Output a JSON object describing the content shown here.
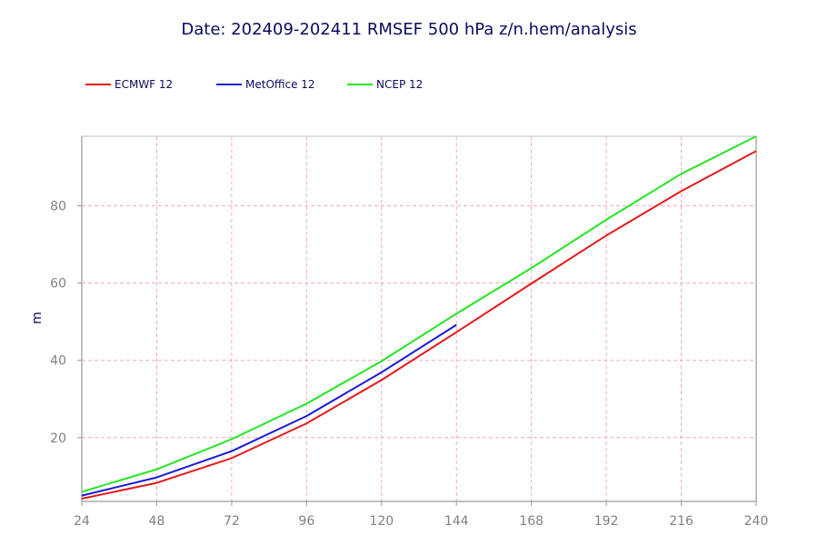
{
  "chart_data": {
    "type": "line",
    "title": "Date: 202409-202411 RMSEF 500 hPa z/n.hem/analysis",
    "xlabel": "",
    "ylabel": "m",
    "xlim": [
      24,
      240
    ],
    "ylim": [
      3.5,
      98
    ],
    "x_ticks": [
      24,
      48,
      72,
      96,
      120,
      144,
      168,
      192,
      216,
      240
    ],
    "y_ticks": [
      20,
      40,
      60,
      80
    ],
    "grid": true,
    "legend_position": "top-left",
    "series": [
      {
        "name": "ECMWF 12",
        "color": "#e41a1c",
        "x": [
          24,
          48,
          72,
          96,
          120,
          144,
          168,
          192,
          216,
          240
        ],
        "y": [
          4.2,
          8.3,
          14.7,
          23.7,
          34.9,
          47.3,
          59.9,
          72.3,
          83.8,
          94.2
        ]
      },
      {
        "name": "MetOffice 12",
        "color": "#1a1ad6",
        "x": [
          24,
          48,
          72,
          96,
          120,
          144
        ],
        "y": [
          5.0,
          9.7,
          16.5,
          25.6,
          36.9,
          49.2
        ]
      },
      {
        "name": "NCEP 12",
        "color": "#22e622",
        "x": [
          24,
          48,
          72,
          96,
          120,
          144,
          168,
          192,
          216,
          240
        ],
        "y": [
          6.0,
          11.8,
          19.6,
          28.8,
          39.8,
          52.1,
          63.9,
          76.4,
          88.3,
          98.0
        ]
      }
    ]
  }
}
